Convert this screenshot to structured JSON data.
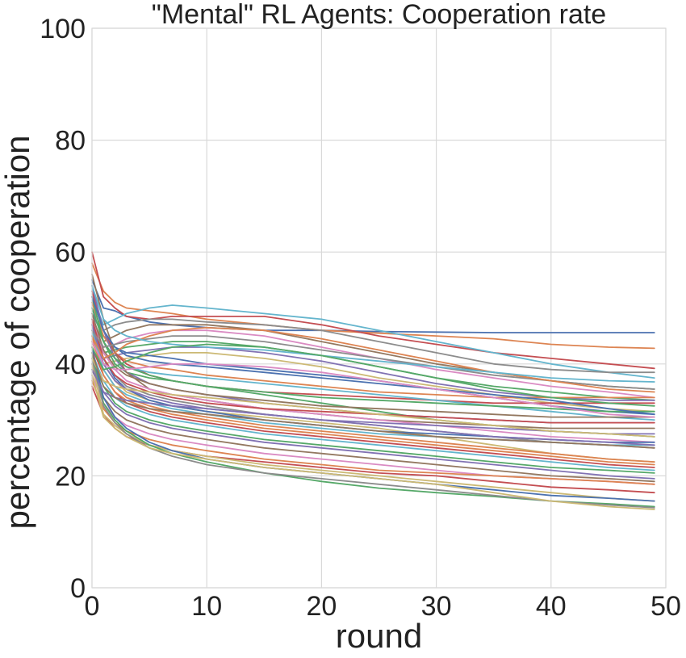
{
  "chart_data": {
    "type": "line",
    "title": "\"Mental\" RL Agents: Cooperation rate",
    "xlabel": "round",
    "ylabel": "percentage of cooperation",
    "xlim": [
      0,
      50
    ],
    "ylim": [
      0,
      100
    ],
    "xticks": [
      0,
      10,
      20,
      30,
      40,
      50
    ],
    "yticks": [
      0,
      20,
      40,
      60,
      80,
      100
    ],
    "grid": true,
    "legend": "none",
    "x": [
      0,
      1,
      2,
      3,
      5,
      7,
      10,
      15,
      20,
      25,
      30,
      35,
      40,
      45,
      49
    ],
    "series": [
      {
        "color": "#4c72b0",
        "values": [
          55,
          50,
          49.5,
          48.5,
          47.5,
          47,
          46.5,
          46,
          46,
          45.8,
          45.7,
          45.6,
          45.6,
          45.6,
          45.6
        ]
      },
      {
        "color": "#dd8452",
        "values": [
          58,
          53,
          51,
          50,
          49.5,
          49,
          48,
          47,
          46,
          45.5,
          45,
          44.5,
          43.5,
          43,
          42.8
        ]
      },
      {
        "color": "#c44e52",
        "values": [
          60,
          52,
          50,
          48.5,
          48,
          48.5,
          48.5,
          48.5,
          47,
          45,
          43.5,
          42,
          41,
          40,
          39.2
        ]
      },
      {
        "color": "#64b5cd",
        "values": [
          52,
          47,
          48,
          49,
          50,
          50.5,
          50,
          49,
          48,
          46,
          44,
          42,
          40,
          38.5,
          37.5
        ]
      },
      {
        "color": "#8c8c8c",
        "values": [
          50,
          46,
          47,
          47.5,
          48,
          48,
          47.5,
          47,
          46,
          44,
          42,
          40,
          39,
          38.5,
          38.5
        ]
      },
      {
        "color": "#937860",
        "values": [
          48,
          44,
          45,
          46,
          47,
          47,
          47,
          46,
          44,
          42,
          40,
          38.5,
          37,
          36,
          35.5
        ]
      },
      {
        "color": "#da8bc3",
        "values": [
          47,
          43,
          43.5,
          44.5,
          45.5,
          46,
          46,
          45,
          43,
          41,
          39,
          37.5,
          36,
          35,
          34
        ]
      },
      {
        "color": "#55a868",
        "values": [
          46,
          42,
          42.5,
          43,
          43.5,
          44,
          44,
          43,
          41.5,
          39.5,
          37.5,
          36,
          35,
          34,
          33.5
        ]
      },
      {
        "color": "#8172b3",
        "values": [
          45,
          41,
          41.5,
          42,
          42.5,
          43,
          43,
          42,
          40.5,
          38.5,
          36.5,
          35,
          34,
          33.5,
          33.5
        ]
      },
      {
        "color": "#ccb974",
        "values": [
          44,
          40,
          40.5,
          41,
          41.5,
          42,
          42,
          41,
          39.5,
          37.5,
          36,
          34.5,
          33,
          32,
          31.5
        ]
      },
      {
        "color": "#4c72b0",
        "values": [
          49,
          45,
          43,
          42,
          41.5,
          41,
          40,
          39,
          38,
          37,
          35.5,
          34,
          32.5,
          31.5,
          31
        ]
      },
      {
        "color": "#dd8452",
        "values": [
          51,
          45,
          42,
          40.5,
          39.5,
          39,
          38,
          37,
          36,
          35,
          34.5,
          34,
          34,
          34,
          34
        ]
      },
      {
        "color": "#c44e52",
        "values": [
          53,
          46,
          42,
          40,
          38,
          37,
          36,
          35,
          34.5,
          34,
          33.5,
          33,
          33,
          33,
          33
        ]
      },
      {
        "color": "#64b5cd",
        "values": [
          50,
          44,
          41,
          39.5,
          38.5,
          38,
          37.5,
          36.5,
          35.5,
          34.5,
          33.5,
          32.5,
          31.5,
          30.5,
          30
        ]
      },
      {
        "color": "#55a868",
        "values": [
          52,
          44,
          40,
          38.5,
          37.5,
          37,
          36,
          34.5,
          33,
          31.5,
          30,
          29,
          28,
          27.5,
          27
        ]
      },
      {
        "color": "#8172b3",
        "values": [
          54,
          46,
          41,
          38.5,
          36.5,
          35.5,
          34.5,
          33,
          32,
          31,
          30.5,
          30,
          29.5,
          29.5,
          29.5
        ]
      },
      {
        "color": "#937860",
        "values": [
          56,
          48,
          42,
          38.5,
          35.5,
          34.5,
          33.5,
          32,
          31,
          30,
          29.5,
          29,
          28.5,
          28.5,
          28.5
        ]
      },
      {
        "color": "#da8bc3",
        "values": [
          48,
          42,
          39,
          37,
          35.5,
          34.5,
          33.5,
          32,
          31,
          30,
          29,
          28,
          27,
          26.5,
          26
        ]
      },
      {
        "color": "#8c8c8c",
        "values": [
          46,
          41,
          38,
          36,
          34.5,
          33.5,
          32.5,
          31,
          30,
          29,
          28,
          27,
          26,
          25.5,
          25
        ]
      },
      {
        "color": "#ccb974",
        "values": [
          45,
          40,
          37,
          35,
          33.5,
          32.5,
          31.5,
          30.5,
          29.5,
          28.5,
          27,
          25.5,
          24,
          23,
          22.5
        ]
      },
      {
        "color": "#4c72b0",
        "values": [
          47,
          41,
          37.5,
          35.5,
          33.5,
          32.5,
          31.5,
          30,
          29,
          28,
          27.5,
          27,
          26.5,
          26,
          26
        ]
      },
      {
        "color": "#dd8452",
        "values": [
          44,
          39,
          36,
          34,
          32.5,
          31.5,
          30.5,
          29,
          28,
          27,
          26,
          25,
          24,
          23,
          22.5
        ]
      },
      {
        "color": "#c44e52",
        "values": [
          43,
          38,
          35,
          33,
          31.5,
          30.5,
          29.5,
          28,
          27,
          26,
          25,
          24,
          23,
          22,
          21.5
        ]
      },
      {
        "color": "#64b5cd",
        "values": [
          42,
          37,
          34,
          32.5,
          31,
          30,
          29,
          27.5,
          26.5,
          25.5,
          24.5,
          23.5,
          22.5,
          21.5,
          21
        ]
      },
      {
        "color": "#55a868",
        "values": [
          41,
          36,
          33,
          31.5,
          30,
          29,
          28,
          26.5,
          25.5,
          24.5,
          23.5,
          22.5,
          21.5,
          21,
          20.5
        ]
      },
      {
        "color": "#8172b3",
        "values": [
          40,
          35,
          32.5,
          31,
          29.5,
          28.5,
          27.5,
          26,
          25,
          24,
          23,
          22,
          21,
          20,
          19.5
        ]
      },
      {
        "color": "#937860",
        "values": [
          39,
          34,
          31.5,
          30,
          28.5,
          27.5,
          26.5,
          25,
          24,
          23,
          22,
          21,
          20,
          19.5,
          19
        ]
      },
      {
        "color": "#da8bc3",
        "values": [
          38,
          33,
          30.5,
          29,
          27.5,
          26.5,
          25.5,
          24,
          23,
          22,
          21,
          20,
          19.5,
          19,
          18.5
        ]
      },
      {
        "color": "#dd8452",
        "values": [
          37,
          32,
          29.5,
          28,
          26.5,
          25.5,
          24.5,
          23,
          22,
          21,
          20.5,
          20,
          19.5,
          19,
          18.5
        ]
      },
      {
        "color": "#c44e52",
        "values": [
          36,
          31,
          28.5,
          27,
          25.5,
          24.5,
          23.5,
          22.5,
          21.5,
          20.5,
          20,
          19,
          18,
          17.5,
          17
        ]
      },
      {
        "color": "#ccb974",
        "values": [
          40,
          31,
          29,
          27.5,
          25.5,
          24.5,
          23.5,
          22,
          21,
          20,
          19,
          18,
          17,
          16,
          15.5
        ]
      },
      {
        "color": "#55a868",
        "values": [
          42,
          33,
          30,
          28,
          25.5,
          24,
          22.5,
          20.5,
          19,
          17.8,
          17,
          16.3,
          15.5,
          15,
          14.5
        ]
      },
      {
        "color": "#4c72b0",
        "values": [
          43,
          34,
          30.5,
          28.5,
          26,
          24.5,
          23,
          21.5,
          20.5,
          19.5,
          18.5,
          17.5,
          16.5,
          16,
          15.5
        ]
      },
      {
        "color": "#8c8c8c",
        "values": [
          41,
          32.5,
          29.5,
          27.5,
          25,
          23.5,
          22,
          20.5,
          19.5,
          18.5,
          17.5,
          16.5,
          15.5,
          14.8,
          14.3
        ]
      },
      {
        "color": "#ccb974",
        "values": [
          38,
          30.5,
          28.5,
          27,
          25,
          24,
          23,
          21.5,
          20.5,
          19.5,
          18.5,
          17,
          15.5,
          14.5,
          14
        ]
      },
      {
        "color": "#dd8452",
        "values": [
          45,
          38,
          35,
          33.5,
          32,
          31,
          30,
          28.5,
          27.5,
          26.5,
          25.5,
          24.5,
          23.5,
          22.5,
          22
        ]
      },
      {
        "color": "#64b5cd",
        "values": [
          46,
          39,
          36,
          34.5,
          33,
          32,
          31,
          29.5,
          28.5,
          27.5,
          27,
          26.5,
          26,
          25.5,
          25.5
        ]
      },
      {
        "color": "#8172b3",
        "values": [
          47,
          40,
          37,
          35.5,
          34,
          33,
          32,
          31,
          30,
          29.5,
          29,
          28.5,
          28,
          27.5,
          27.5
        ]
      },
      {
        "color": "#c44e52",
        "values": [
          48,
          41,
          38,
          36.5,
          35,
          34,
          33,
          32,
          31.5,
          31,
          30.5,
          30,
          29.5,
          29.5,
          29.5
        ]
      },
      {
        "color": "#937860",
        "values": [
          49,
          42.5,
          39.5,
          38,
          36.5,
          35.5,
          34.5,
          33.5,
          32.5,
          32,
          31.5,
          31,
          30.5,
          30.5,
          30.5
        ]
      },
      {
        "color": "#55a868",
        "values": [
          50,
          44,
          41,
          39.5,
          38,
          37,
          36,
          35,
          34,
          33.5,
          33,
          32.5,
          32,
          31.5,
          31.5
        ]
      },
      {
        "color": "#4c72b0",
        "values": [
          52,
          46,
          43,
          41.5,
          40.5,
          40,
          39.5,
          38.5,
          37.5,
          36.5,
          35.5,
          34.5,
          33.5,
          32,
          31
        ]
      },
      {
        "color": "#da8bc3",
        "values": [
          44,
          40,
          39,
          39,
          39.5,
          40,
          40,
          39.5,
          38.5,
          37,
          35.5,
          34,
          32.5,
          31,
          30.5
        ]
      },
      {
        "color": "#8c8c8c",
        "values": [
          46,
          43,
          43.5,
          44,
          44.5,
          45,
          45,
          44,
          42.5,
          41,
          39.5,
          38,
          37,
          36,
          35.5
        ]
      },
      {
        "color": "#dd8452",
        "values": [
          45,
          41,
          42,
          43.5,
          45,
          46,
          46.5,
          46,
          44.5,
          42.5,
          40.5,
          38.5,
          37,
          35.5,
          35
        ]
      },
      {
        "color": "#64b5cd",
        "values": [
          54,
          48,
          46,
          45,
          44,
          43.5,
          43,
          42.5,
          41.5,
          40.5,
          39.5,
          38.5,
          37.5,
          37,
          36.8
        ]
      },
      {
        "color": "#55a868",
        "values": [
          43,
          39,
          39.5,
          40.5,
          42,
          43,
          43.5,
          43,
          41.5,
          39.5,
          37.5,
          35.5,
          34,
          33,
          32.5
        ]
      },
      {
        "color": "#ccb974",
        "values": [
          41,
          37,
          36,
          35.5,
          35,
          34.5,
          34,
          33,
          32,
          31,
          30,
          29,
          28,
          27.5,
          27
        ]
      },
      {
        "color": "#8172b3",
        "values": [
          39,
          35,
          34,
          33.5,
          33,
          32.5,
          32,
          31,
          30,
          29,
          28,
          27,
          26.5,
          26,
          25.5
        ]
      },
      {
        "color": "#937860",
        "values": [
          42,
          36,
          34,
          33,
          32,
          31.5,
          31,
          30,
          29,
          28,
          27,
          26.5,
          26,
          25.5,
          25
        ]
      }
    ]
  }
}
